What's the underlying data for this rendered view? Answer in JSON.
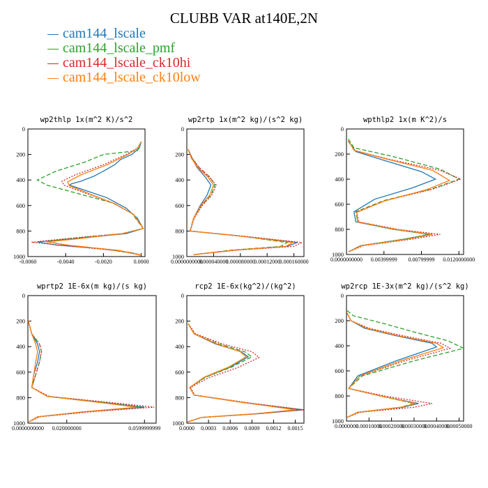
{
  "figure": {
    "title": "CLUBB VAR at140E,2N"
  },
  "legend": [
    {
      "label": "cam144_lscale",
      "color": "#1f77b4"
    },
    {
      "label": "cam144_lscale_pmf",
      "color": "#2ca02c"
    },
    {
      "label": "cam144_lscale_ck10hi",
      "color": "#d62728"
    },
    {
      "label": "cam144_lscale_ck10low",
      "color": "#ff7f0e"
    }
  ],
  "chart_data": [
    {
      "type": "line",
      "title": "wp2thlp   1x(m^2 K)/s^2",
      "xlim": [
        -0.006,
        0.0002
      ],
      "ylim": [
        1000,
        0
      ],
      "xticks": [
        "-0.0060",
        "-0.0040",
        "-0.0020",
        "0.0000"
      ],
      "xtick_values": [
        -0.006,
        -0.004,
        -0.002,
        0.0
      ],
      "yticks": [
        "0",
        "200",
        "400",
        "600",
        "800",
        "1000"
      ],
      "series": [
        {
          "line": "solid",
          "color": "#1f77b4",
          "x": [
            0,
            -0.0001,
            -0.0005,
            -0.0011,
            -0.0014,
            -0.002,
            -0.0025,
            -0.0032,
            -0.0037,
            -0.0038,
            -0.003,
            -0.0018,
            -0.0008,
            -0.0002,
            0.0001,
            -0.0008,
            -0.0035,
            -0.0055,
            -0.0045,
            -0.002,
            -0.0005,
            0
          ],
          "y": [
            100,
            150,
            200,
            240,
            280,
            330,
            370,
            410,
            430,
            440,
            480,
            540,
            620,
            700,
            780,
            820,
            860,
            885,
            910,
            940,
            970,
            990
          ]
        },
        {
          "line": "dashed",
          "color": "#2ca02c",
          "x": [
            0,
            -0.0002,
            -0.002,
            -0.003,
            -0.0045,
            -0.0055,
            -0.005,
            -0.003,
            -0.0015,
            -0.0005,
            0.0001,
            -0.001,
            -0.0035,
            -0.005,
            -0.004,
            -0.0015,
            0
          ],
          "y": [
            100,
            170,
            200,
            260,
            330,
            400,
            440,
            520,
            580,
            660,
            780,
            820,
            855,
            880,
            910,
            950,
            985
          ]
        },
        {
          "line": "dotted",
          "color": "#d62728",
          "x": [
            0,
            -0.0002,
            -0.0008,
            -0.002,
            -0.0035,
            -0.0042,
            -0.0041,
            -0.003,
            -0.0015,
            -0.0004,
            0.0001,
            -0.001,
            -0.004,
            -0.0058,
            -0.004,
            -0.0012,
            0
          ],
          "y": [
            100,
            150,
            200,
            280,
            360,
            410,
            440,
            500,
            580,
            670,
            780,
            820,
            860,
            888,
            915,
            955,
            990
          ]
        },
        {
          "line": "solid",
          "color": "#ff7f0e",
          "x": [
            0,
            -0.0002,
            -0.0007,
            -0.0018,
            -0.0032,
            -0.0039,
            -0.0038,
            -0.0028,
            -0.0014,
            -0.0004,
            0.0001,
            -0.001,
            -0.0033,
            -0.005,
            -0.0038,
            -0.0012,
            0
          ],
          "y": [
            100,
            150,
            200,
            280,
            360,
            415,
            445,
            505,
            585,
            670,
            780,
            820,
            860,
            885,
            912,
            952,
            988
          ]
        }
      ]
    },
    {
      "type": "line",
      "title": "wp2rtp   1x(m^2 kg)/(s^2 kg)",
      "xlim": [
        0.0,
        0.000175
      ],
      "ylim": [
        1000,
        0
      ],
      "xticks": [
        "0.0000000000",
        "0.000040000",
        "0.000080000",
        "0.00012000",
        "0.000160000"
      ],
      "xtick_values": [
        0.0,
        4e-05,
        8e-05,
        0.00012,
        0.00016
      ],
      "yticks": [
        "0",
        "200",
        "400",
        "600",
        "800",
        "1000"
      ],
      "series": [
        {
          "line": "solid",
          "color": "#1f77b4",
          "x": [
            2e-06,
            8e-06,
            1.5e-05,
            2.8e-05,
            3.6e-05,
            3e-05,
            2e-05,
            1e-05,
            5e-06,
            8e-05,
            0.000165,
            0.00015,
            7e-05,
            1e-05
          ],
          "y": [
            160,
            230,
            300,
            380,
            440,
            520,
            600,
            700,
            800,
            840,
            890,
            920,
            950,
            985
          ]
        },
        {
          "line": "dashed",
          "color": "#2ca02c",
          "x": [
            2e-06,
            8e-06,
            1.8e-05,
            3.5e-05,
            4.2e-05,
            3.6e-05,
            2.2e-05,
            1e-05,
            5e-06,
            8e-05,
            0.00015,
            0.00014,
            6.5e-05,
            1e-05
          ],
          "y": [
            160,
            230,
            300,
            380,
            440,
            520,
            600,
            700,
            800,
            840,
            890,
            920,
            950,
            985
          ]
        },
        {
          "line": "dotted",
          "color": "#d62728",
          "x": [
            2e-06,
            8e-06,
            1.8e-05,
            3.4e-05,
            4.4e-05,
            3.7e-05,
            2.3e-05,
            1.1e-05,
            5e-06,
            8.5e-05,
            0.000172,
            0.00016,
            7.5e-05,
            1e-05
          ],
          "y": [
            160,
            230,
            300,
            380,
            440,
            520,
            600,
            700,
            800,
            840,
            890,
            920,
            950,
            985
          ]
        },
        {
          "line": "solid",
          "color": "#ff7f0e",
          "x": [
            2e-06,
            7e-06,
            1.6e-05,
            3.2e-05,
            4e-05,
            3.4e-05,
            2.1e-05,
            1e-05,
            5e-06,
            8e-05,
            0.000158,
            0.000148,
            7e-05,
            1e-05
          ],
          "y": [
            160,
            230,
            300,
            380,
            440,
            520,
            600,
            700,
            800,
            840,
            890,
            920,
            950,
            985
          ]
        }
      ]
    },
    {
      "type": "line",
      "title": "wpthlp2   1x(m K^2)/s",
      "xlim": [
        0.0,
        0.0125
      ],
      "ylim": [
        1000,
        0
      ],
      "xticks": [
        "0.0000000000",
        "0.00399999",
        "0.00799999",
        "0.0120000000"
      ],
      "xtick_values": [
        0.0,
        0.004,
        0.008,
        0.012
      ],
      "yticks": [
        "0",
        "200",
        "400",
        "600",
        "800",
        "1000"
      ],
      "series": [
        {
          "line": "solid",
          "color": "#1f77b4",
          "x": [
            0.0002,
            0.001,
            0.004,
            0.008,
            0.0095,
            0.007,
            0.003,
            0.0008,
            0.001,
            0.005,
            0.009,
            0.006,
            0.0015,
            0.0002
          ],
          "y": [
            100,
            180,
            250,
            340,
            400,
            470,
            560,
            660,
            740,
            800,
            840,
            880,
            930,
            980
          ]
        },
        {
          "line": "dashed",
          "color": "#2ca02c",
          "x": [
            0.0002,
            0.0008,
            0.005,
            0.01,
            0.012,
            0.009,
            0.004,
            0.001,
            0.0012,
            0.005,
            0.0088,
            0.006,
            0.0015,
            0.0002
          ],
          "y": [
            80,
            150,
            220,
            320,
            400,
            480,
            570,
            660,
            740,
            800,
            840,
            880,
            930,
            980
          ]
        },
        {
          "line": "dotted",
          "color": "#d62728",
          "x": [
            0.0002,
            0.0008,
            0.0045,
            0.01,
            0.0122,
            0.0092,
            0.0042,
            0.0011,
            0.0013,
            0.0055,
            0.01,
            0.0068,
            0.0018,
            0.0002
          ],
          "y": [
            90,
            170,
            240,
            330,
            400,
            480,
            570,
            660,
            740,
            800,
            840,
            880,
            930,
            980
          ]
        },
        {
          "line": "solid",
          "color": "#ff7f0e",
          "x": [
            0.0002,
            0.0008,
            0.0043,
            0.0092,
            0.011,
            0.0085,
            0.004,
            0.0011,
            0.0012,
            0.0052,
            0.0092,
            0.0063,
            0.0016,
            0.0002
          ],
          "y": [
            90,
            170,
            240,
            330,
            410,
            485,
            575,
            665,
            740,
            800,
            840,
            880,
            930,
            980
          ]
        }
      ]
    },
    {
      "type": "line",
      "title": "wprtp2   1E-6x(m kg)/(s kg)",
      "xlim": [
        0.0,
        0.066
      ],
      "ylim": [
        1000,
        0
      ],
      "xticks": [
        "0.0000000000",
        "0.020000000",
        "0.0599999999"
      ],
      "xtick_values": [
        0.0,
        0.02,
        0.06
      ],
      "yticks": [
        "0",
        "200",
        "400",
        "600",
        "800",
        "1000"
      ],
      "series": [
        {
          "line": "solid",
          "color": "#1f77b4",
          "x": [
            0.0002,
            0.002,
            0.005,
            0.006,
            0.005,
            0.003,
            0.002,
            0.01,
            0.04,
            0.06,
            0.03,
            0.005,
            0.0005
          ],
          "y": [
            200,
            300,
            380,
            440,
            520,
            620,
            720,
            790,
            840,
            875,
            910,
            950,
            990
          ]
        },
        {
          "line": "dashed",
          "color": "#2ca02c",
          "x": [
            0.0002,
            0.002,
            0.006,
            0.007,
            0.006,
            0.004,
            0.002,
            0.01,
            0.04,
            0.058,
            0.03,
            0.005,
            0.0005
          ],
          "y": [
            200,
            300,
            380,
            440,
            520,
            620,
            720,
            790,
            840,
            875,
            910,
            950,
            990
          ]
        },
        {
          "line": "dotted",
          "color": "#d62728",
          "x": [
            0.0002,
            0.002,
            0.006,
            0.007,
            0.006,
            0.004,
            0.002,
            0.011,
            0.044,
            0.065,
            0.033,
            0.006,
            0.0005
          ],
          "y": [
            200,
            300,
            380,
            440,
            520,
            620,
            720,
            790,
            840,
            875,
            910,
            950,
            990
          ]
        },
        {
          "line": "solid",
          "color": "#ff7f0e",
          "x": [
            0.0002,
            0.002,
            0.004,
            0.005,
            0.004,
            0.003,
            0.002,
            0.01,
            0.038,
            0.056,
            0.029,
            0.005,
            0.0005
          ],
          "y": [
            200,
            300,
            380,
            440,
            520,
            620,
            720,
            790,
            840,
            875,
            910,
            950,
            990
          ]
        }
      ]
    },
    {
      "type": "line",
      "title": "rcp2   1E-6x(kg^2)/(kg^2)",
      "xlim": [
        0.0,
        0.00162
      ],
      "ylim": [
        1000,
        0
      ],
      "xticks": [
        "0.0000",
        "0.0003",
        "0.0006",
        "0.0009",
        "0.0012",
        "0.0015"
      ],
      "xtick_values": [
        0.0,
        0.0003,
        0.0006,
        0.0009,
        0.0012,
        0.0015
      ],
      "yticks": [
        "0",
        "200",
        "400",
        "600",
        "800",
        "1000"
      ],
      "series": [
        {
          "line": "solid",
          "color": "#1f77b4",
          "x": [
            2e-05,
            0.0001,
            0.0004,
            0.00075,
            0.00085,
            0.0006,
            0.00025,
            4e-05,
            0.0001,
            0.0008,
            0.0016,
            0.001,
            0.0002,
            1e-05
          ],
          "y": [
            220,
            300,
            380,
            440,
            480,
            560,
            640,
            720,
            780,
            840,
            895,
            925,
            955,
            990
          ]
        },
        {
          "line": "dashed",
          "color": "#2ca02c",
          "x": [
            2e-05,
            0.0001,
            0.00045,
            0.0008,
            0.0009,
            0.00062,
            0.00026,
            4e-05,
            0.0001,
            0.0008,
            0.00155,
            0.00098,
            0.0002,
            1e-05
          ],
          "y": [
            220,
            300,
            380,
            440,
            480,
            560,
            640,
            720,
            780,
            840,
            895,
            925,
            955,
            990
          ]
        },
        {
          "line": "dotted",
          "color": "#d62728",
          "x": [
            2e-05,
            0.00012,
            0.0005,
            0.0009,
            0.001,
            0.0007,
            0.0003,
            5e-05,
            0.00011,
            0.00085,
            0.00162,
            0.00102,
            0.00021,
            1e-05
          ],
          "y": [
            220,
            300,
            380,
            440,
            485,
            565,
            645,
            720,
            780,
            840,
            895,
            925,
            955,
            990
          ]
        },
        {
          "line": "solid",
          "color": "#ff7f0e",
          "x": [
            2e-05,
            0.0001,
            0.00042,
            0.00074,
            0.00082,
            0.00058,
            0.00024,
            4e-05,
            0.0001,
            0.0008,
            0.0015,
            0.00096,
            0.0002,
            1e-05
          ],
          "y": [
            220,
            300,
            380,
            440,
            480,
            560,
            640,
            720,
            780,
            840,
            895,
            925,
            955,
            990
          ]
        }
      ]
    },
    {
      "type": "line",
      "title": "wp2rcp   1E-3x(m^2 kg)/(s^2 kg)",
      "xlim": [
        0.0,
        0.00052
      ],
      "ylim": [
        1000,
        0
      ],
      "xticks": [
        "0.0000000",
        "0.00010000",
        "0.00020000",
        "0.00030000",
        "0.00040000",
        "0.00050000"
      ],
      "xtick_values": [
        0.0,
        0.0001,
        0.0002,
        0.0003,
        0.0004,
        0.0005
      ],
      "yticks": [
        "0",
        "200",
        "400",
        "600",
        "800",
        "1000"
      ],
      "series": [
        {
          "line": "solid",
          "color": "#1f77b4",
          "x": [
            3e-06,
            2e-05,
            8e-05,
            0.00022,
            0.00038,
            0.0004,
            0.00022,
            5e-05,
            1e-05,
            0.00015,
            0.00032,
            0.00025,
            5e-05,
            3e-06
          ],
          "y": [
            140,
            200,
            260,
            320,
            380,
            410,
            520,
            640,
            740,
            800,
            860,
            890,
            930,
            970
          ]
        },
        {
          "line": "dashed",
          "color": "#2ca02c",
          "x": [
            3e-06,
            3e-05,
            0.00018,
            0.0003,
            0.00045,
            0.00052,
            0.0003,
            7e-05,
            1e-05,
            0.00015,
            0.0003,
            0.00024,
            5e-05,
            3e-06
          ],
          "y": [
            120,
            160,
            230,
            290,
            360,
            420,
            520,
            640,
            740,
            800,
            860,
            890,
            930,
            970
          ]
        },
        {
          "line": "dotted",
          "color": "#d62728",
          "x": [
            3e-06,
            2e-05,
            0.0001,
            0.00025,
            0.00042,
            0.00046,
            0.00026,
            6e-05,
            1e-05,
            0.00017,
            0.00038,
            0.0003,
            6e-05,
            3e-06
          ],
          "y": [
            140,
            200,
            260,
            320,
            380,
            420,
            520,
            640,
            740,
            800,
            860,
            890,
            930,
            970
          ]
        },
        {
          "line": "solid",
          "color": "#ff7f0e",
          "x": [
            3e-06,
            2e-05,
            9e-05,
            0.00023,
            0.0004,
            0.00043,
            0.00024,
            6e-05,
            1e-05,
            0.00015,
            0.00031,
            0.00024,
            5e-05,
            3e-06
          ],
          "y": [
            140,
            200,
            260,
            320,
            380,
            415,
            520,
            640,
            740,
            800,
            860,
            890,
            930,
            970
          ]
        }
      ]
    }
  ]
}
